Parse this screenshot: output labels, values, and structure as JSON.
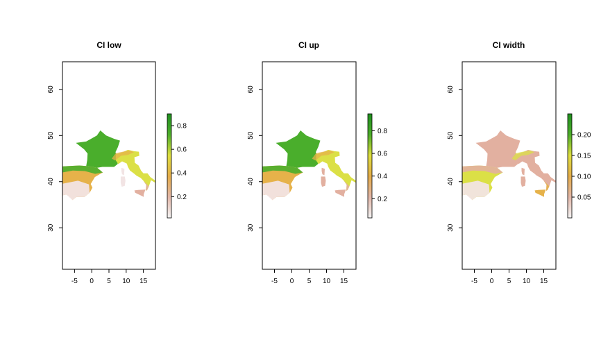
{
  "figure": {
    "background": "#ffffff",
    "map_colors": {
      "sea": "#ffffff",
      "low": "#f2e4e4",
      "mid_low": "#e2b0a0",
      "mid": "#e6b24a",
      "mid_high": "#dbe046",
      "high": "#4aae2c",
      "top": "#1f8f1f"
    }
  },
  "chart_data": [
    {
      "type": "heatmap",
      "title": "CI low",
      "xlabel": "",
      "ylabel": "",
      "x_ticks": [
        "-5",
        "0",
        "5",
        "10",
        "15"
      ],
      "y_ticks": [
        "30",
        "40",
        "50",
        "60"
      ],
      "xlim": [
        -8.5,
        18.5
      ],
      "ylim": [
        21,
        66
      ],
      "colorbar": {
        "ticks": [
          "0.2",
          "0.4",
          "0.6",
          "0.8"
        ],
        "tick_values": [
          0.2,
          0.4,
          0.6,
          0.8
        ],
        "range": [
          0.02,
          0.9
        ],
        "colors": [
          "#f4f4f4",
          "#e2b6a8",
          "#e4ac48",
          "#dede3e",
          "#4cae2a",
          "#1f8f1f"
        ]
      },
      "palette": "low"
    },
    {
      "type": "heatmap",
      "title": "CI up",
      "xlabel": "",
      "ylabel": "",
      "x_ticks": [
        "-5",
        "0",
        "5",
        "10",
        "15"
      ],
      "y_ticks": [
        "30",
        "40",
        "50",
        "60"
      ],
      "xlim": [
        -8.5,
        18.5
      ],
      "ylim": [
        21,
        66
      ],
      "colorbar": {
        "ticks": [
          "0.2",
          "0.4",
          "0.6",
          "0.8"
        ],
        "tick_values": [
          0.2,
          0.4,
          0.6,
          0.8
        ],
        "range": [
          0.03,
          0.95
        ],
        "colors": [
          "#f4f4f4",
          "#e2b6a8",
          "#e4ac48",
          "#dede3e",
          "#4cae2a",
          "#1f8f1f"
        ]
      },
      "palette": "up"
    },
    {
      "type": "heatmap",
      "title": "CI width",
      "xlabel": "",
      "ylabel": "",
      "x_ticks": [
        "-5",
        "0",
        "5",
        "10",
        "15"
      ],
      "y_ticks": [
        "30",
        "40",
        "50",
        "60"
      ],
      "xlim": [
        -8.5,
        18.5
      ],
      "ylim": [
        21,
        66
      ],
      "colorbar": {
        "ticks": [
          "0.05",
          "0.10",
          "0.15",
          "0.20"
        ],
        "tick_values": [
          0.05,
          0.1,
          0.15,
          0.2
        ],
        "range": [
          0.0,
          0.25
        ],
        "colors": [
          "#f4f4f4",
          "#e2b6a8",
          "#e4ac48",
          "#dede3e",
          "#4cae2a",
          "#1f8f1f"
        ]
      },
      "palette": "width"
    }
  ]
}
